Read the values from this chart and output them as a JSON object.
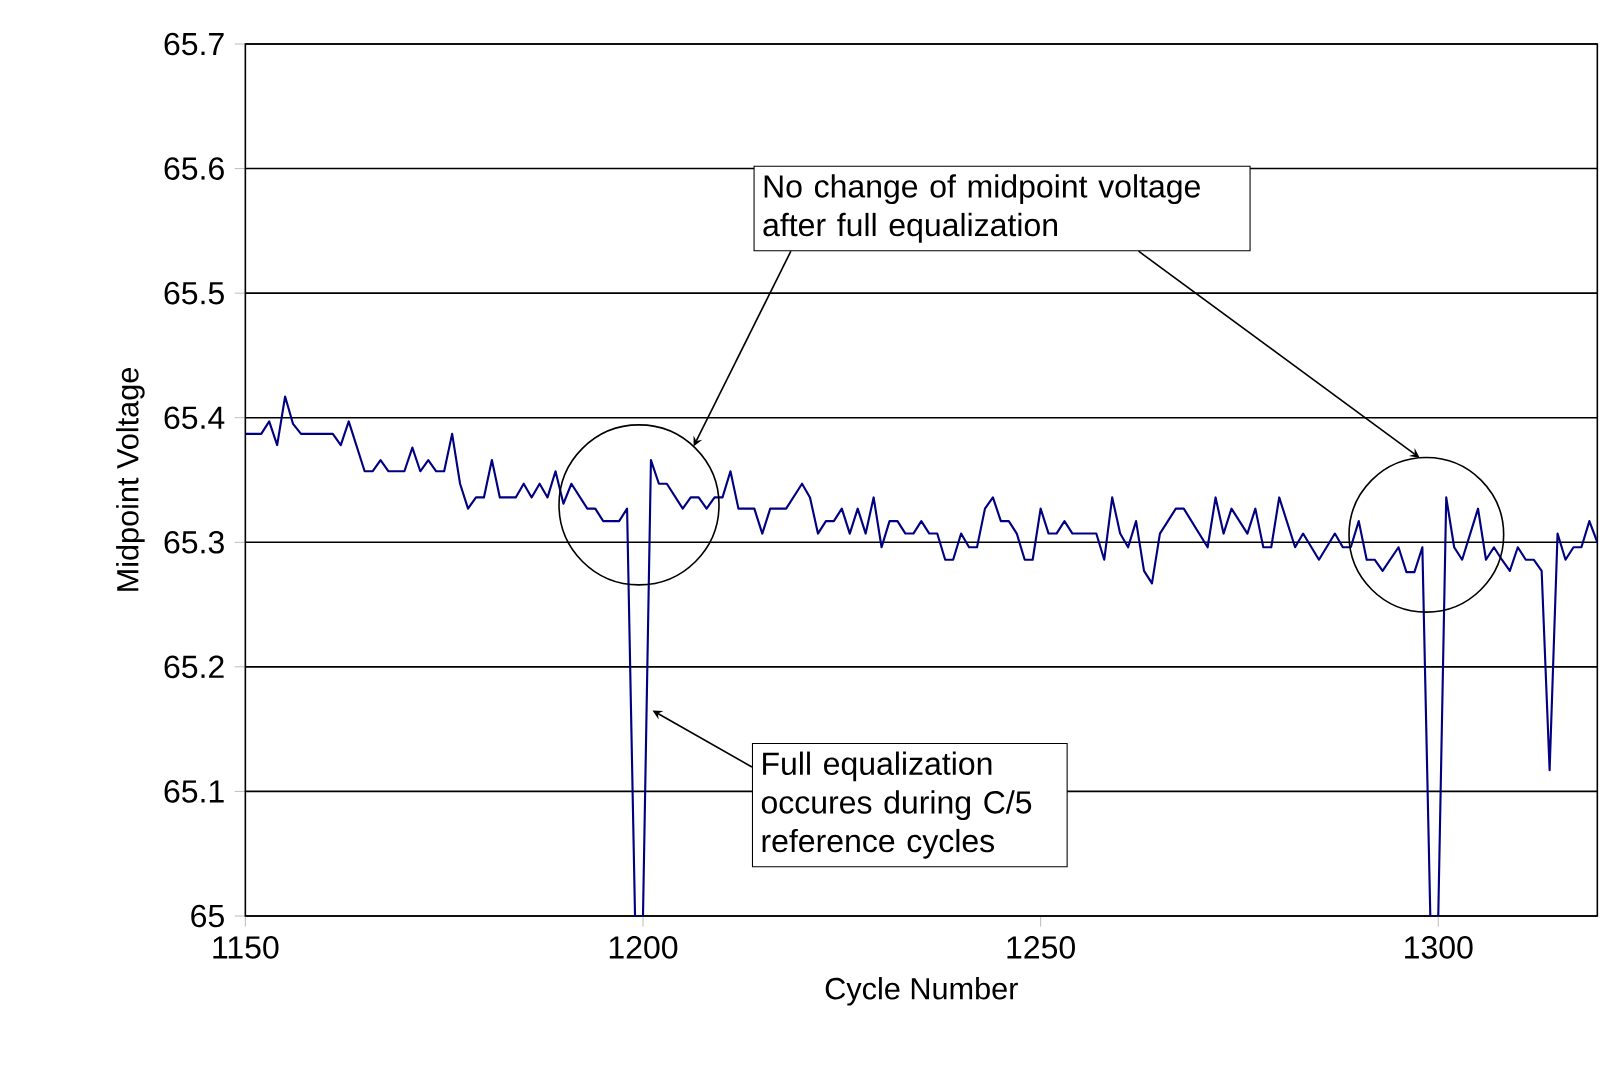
{
  "chart_data": {
    "type": "line",
    "xlabel": "Cycle Number",
    "ylabel": "Midpoint Voltage",
    "xlim": [
      1150,
      1320
    ],
    "xticks": [
      1150,
      1200,
      1250,
      1300
    ],
    "ylim": [
      65,
      65.7
    ],
    "yticks": [
      65,
      65.1,
      65.2,
      65.3,
      65.4,
      65.5,
      65.6,
      65.7
    ],
    "grid": "y",
    "marker": "none",
    "line_style": "solid",
    "annotations": [
      "No change of midpoint voltage after full equalization",
      {
        "text": "Full equalization occures during C/5 reference cycles",
        "x": 1201.2,
        "y": 65.165
      }
    ],
    "series": [
      {
        "color": "#000080",
        "x": [
          1150,
          1152,
          1153,
          1154,
          1155,
          1156,
          1157,
          1161,
          1162,
          1163,
          1165,
          1166,
          1167,
          1168,
          1170,
          1171,
          1172,
          1173,
          1174,
          1175,
          1176,
          1177,
          1178,
          1179,
          1180,
          1181,
          1182,
          1184,
          1185,
          1186,
          1187,
          1188,
          1189,
          1190,
          1191,
          1193,
          1194,
          1195,
          1197,
          1198,
          1199,
          1200,
          1201,
          1202,
          1203,
          1205,
          1206,
          1207,
          1208,
          1209,
          1210,
          1211,
          1212,
          1214,
          1215,
          1216,
          1218,
          1220,
          1221,
          1222,
          1223,
          1224,
          1225,
          1226,
          1227,
          1228,
          1229,
          1230,
          1231,
          1232,
          1233,
          1234,
          1235,
          1236,
          1237,
          1238,
          1239,
          1240,
          1241,
          1242,
          1243,
          1244,
          1245,
          1246,
          1247,
          1248,
          1249,
          1250,
          1251,
          1252,
          1253,
          1254,
          1257,
          1258,
          1259,
          1260,
          1261,
          1262,
          1263,
          1264,
          1265,
          1267,
          1268,
          1271,
          1272,
          1273,
          1274,
          1276,
          1277,
          1278,
          1279,
          1280,
          1282,
          1283,
          1285,
          1287,
          1288,
          1289,
          1290,
          1291,
          1292,
          1293,
          1295,
          1296,
          1297,
          1298,
          1299,
          1300,
          1301,
          1302,
          1303,
          1305,
          1306,
          1307,
          1308,
          1309,
          1310,
          1311,
          1312,
          1313,
          1314,
          1315,
          1316,
          1317,
          1318,
          1319,
          1320
        ],
        "values": [
          65.387,
          65.387,
          65.397,
          65.378,
          65.417,
          65.395,
          65.387,
          65.387,
          65.378,
          65.397,
          65.357,
          65.357,
          65.366,
          65.357,
          65.357,
          65.376,
          65.357,
          65.366,
          65.357,
          65.357,
          65.387,
          65.347,
          65.327,
          65.336,
          65.336,
          65.366,
          65.336,
          65.336,
          65.347,
          65.336,
          65.347,
          65.336,
          65.357,
          65.331,
          65.347,
          65.327,
          65.327,
          65.317,
          65.317,
          65.327,
          65.0,
          65.0,
          65.366,
          65.347,
          65.347,
          65.327,
          65.336,
          65.336,
          65.327,
          65.336,
          65.336,
          65.357,
          65.327,
          65.327,
          65.307,
          65.327,
          65.327,
          65.347,
          65.336,
          65.307,
          65.317,
          65.317,
          65.327,
          65.307,
          65.327,
          65.307,
          65.336,
          65.296,
          65.317,
          65.317,
          65.307,
          65.307,
          65.317,
          65.307,
          65.307,
          65.286,
          65.286,
          65.307,
          65.296,
          65.296,
          65.327,
          65.336,
          65.317,
          65.317,
          65.307,
          65.286,
          65.286,
          65.327,
          65.307,
          65.307,
          65.317,
          65.307,
          65.307,
          65.286,
          65.336,
          65.307,
          65.296,
          65.317,
          65.277,
          65.267,
          65.307,
          65.327,
          65.327,
          65.296,
          65.336,
          65.307,
          65.327,
          65.307,
          65.327,
          65.296,
          65.296,
          65.336,
          65.296,
          65.307,
          65.286,
          65.307,
          65.296,
          65.296,
          65.317,
          65.286,
          65.286,
          65.277,
          65.296,
          65.276,
          65.276,
          65.296,
          65.0,
          65.0,
          65.336,
          65.296,
          65.286,
          65.327,
          65.286,
          65.296,
          65.286,
          65.277,
          65.296,
          65.286,
          65.286,
          65.277,
          65.117,
          65.307,
          65.286,
          65.296,
          65.296,
          65.317,
          65.3
        ]
      }
    ]
  }
}
